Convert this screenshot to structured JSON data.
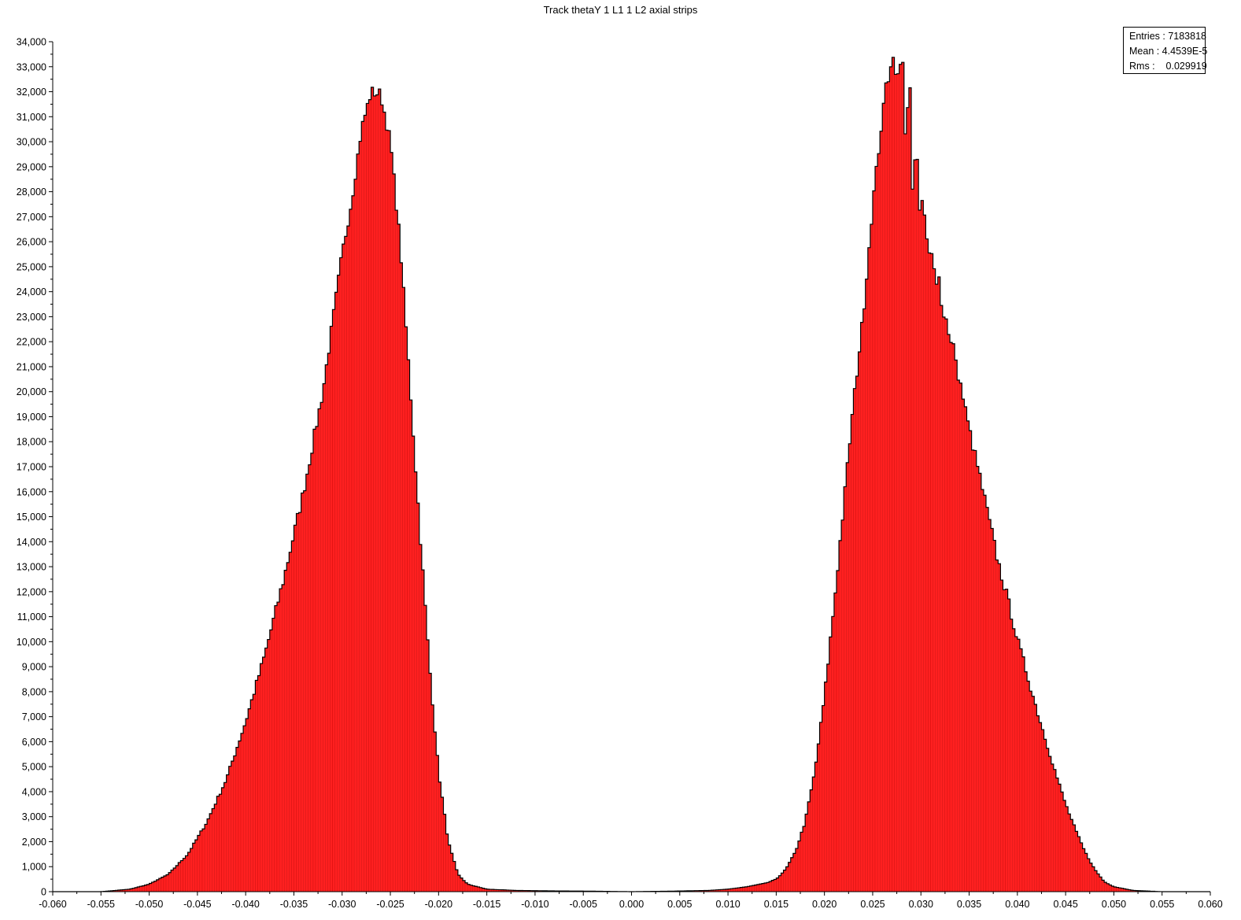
{
  "chart_data": {
    "type": "bar",
    "title": "Track thetaY 1 L1 1 L2 axial strips",
    "xlabel": "",
    "ylabel": "",
    "xlim": [
      -0.06,
      0.06
    ],
    "ylim": [
      0,
      34000
    ],
    "bin_width": 0.00025,
    "grid": false,
    "legend": "none",
    "bar_color": "#ff2020",
    "edge_color": "#000000",
    "x_ticks": [
      "-0.060",
      "-0.055",
      "-0.050",
      "-0.045",
      "-0.040",
      "-0.035",
      "-0.030",
      "-0.025",
      "-0.020",
      "-0.015",
      "-0.010",
      "-0.005",
      "0.000",
      "0.005",
      "0.010",
      "0.015",
      "0.020",
      "0.025",
      "0.030",
      "0.035",
      "0.040",
      "0.045",
      "0.050",
      "0.055",
      "0.060"
    ],
    "y_ticks": [
      "0",
      "1,000",
      "2,000",
      "3,000",
      "4,000",
      "5,000",
      "6,000",
      "7,000",
      "8,000",
      "9,000",
      "10,000",
      "11,000",
      "12,000",
      "13,000",
      "14,000",
      "15,000",
      "16,000",
      "17,000",
      "18,000",
      "19,000",
      "20,000",
      "21,000",
      "22,000",
      "23,000",
      "24,000",
      "25,000",
      "26,000",
      "27,000",
      "28,000",
      "29,000",
      "30,000",
      "31,000",
      "32,000",
      "33,000",
      "34,000"
    ],
    "series": [
      {
        "x": [
          -0.055,
          -0.052,
          -0.05,
          -0.048,
          -0.046,
          -0.044,
          -0.042,
          -0.04,
          -0.038,
          -0.036,
          -0.034,
          -0.032,
          -0.03,
          -0.029,
          -0.028,
          -0.027,
          -0.026,
          -0.025,
          -0.024,
          -0.023,
          -0.022,
          -0.021,
          -0.02,
          -0.019,
          -0.018,
          -0.017,
          -0.016,
          -0.015,
          -0.012,
          -0.008,
          -0.004,
          0.0
        ],
        "y": [
          0,
          100,
          300,
          700,
          1500,
          2800,
          4500,
          6800,
          9500,
          12600,
          16000,
          20000,
          25500,
          27700,
          30500,
          32000,
          31900,
          30000,
          26000,
          20500,
          14800,
          9300,
          4800,
          2000,
          700,
          300,
          200,
          100,
          50,
          30,
          20,
          0
        ]
      },
      {
        "x": [
          0.0,
          0.004,
          0.008,
          0.01,
          0.012,
          0.014,
          0.015,
          0.016,
          0.017,
          0.018,
          0.019,
          0.02,
          0.021,
          0.022,
          0.023,
          0.024,
          0.025,
          0.026,
          0.027,
          0.028,
          0.029,
          0.03,
          0.031,
          0.032,
          0.033,
          0.034,
          0.035,
          0.036,
          0.037,
          0.038,
          0.039,
          0.04,
          0.041,
          0.042,
          0.043,
          0.044,
          0.045,
          0.046,
          0.047,
          0.048,
          0.049,
          0.05,
          0.052,
          0.055
        ],
        "y": [
          0,
          20,
          50,
          100,
          200,
          350,
          500,
          900,
          1600,
          2800,
          4800,
          7800,
          11500,
          15500,
          19500,
          23000,
          27500,
          31000,
          33500,
          32000,
          28000,
          27000,
          25500,
          23800,
          22000,
          20500,
          18500,
          16800,
          15000,
          13200,
          11700,
          10100,
          8700,
          7300,
          6000,
          4700,
          3500,
          2500,
          1600,
          900,
          400,
          200,
          50,
          0
        ]
      }
    ],
    "comb_peaks": [
      {
        "x": 0.0208,
        "y": 10500
      },
      {
        "x": 0.022,
        "y": 13000
      },
      {
        "x": 0.023,
        "y": 18000
      },
      {
        "x": 0.024,
        "y": 21500
      },
      {
        "x": 0.025,
        "y": 25500
      },
      {
        "x": 0.0258,
        "y": 29500
      },
      {
        "x": 0.0265,
        "y": 33000
      },
      {
        "x": 0.0272,
        "y": 33600
      },
      {
        "x": 0.028,
        "y": 33800
      },
      {
        "x": 0.0288,
        "y": 32500
      },
      {
        "x": 0.0295,
        "y": 30000
      },
      {
        "x": 0.0302,
        "y": 28000
      },
      {
        "x": 0.031,
        "y": 26500
      },
      {
        "x": 0.0318,
        "y": 25000
      },
      {
        "x": 0.0325,
        "y": 23600
      },
      {
        "x": 0.0333,
        "y": 22500
      }
    ]
  },
  "stats": {
    "entries_label": "Entries : 7183818",
    "mean_label": "Mean : 4.4539E-5",
    "rms_label": "Rms :    0.029919"
  }
}
